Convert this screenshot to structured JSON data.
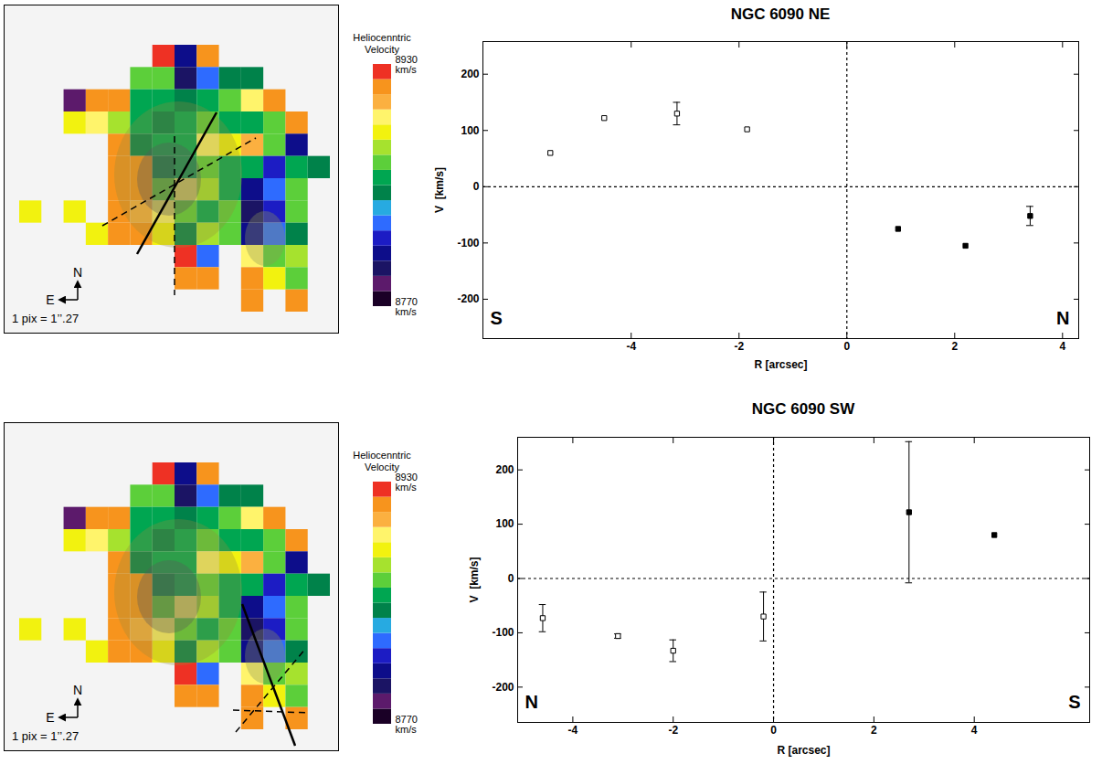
{
  "chart_data": [
    {
      "type": "heatmap",
      "tick_labels": false,
      "cells": [
        [
          0,
          6,
          8925
        ],
        [
          0,
          7,
          8805
        ],
        [
          0,
          8,
          8915
        ],
        [
          1,
          5,
          8865
        ],
        [
          1,
          6,
          8865
        ],
        [
          1,
          7,
          8795
        ],
        [
          1,
          8,
          8825
        ],
        [
          1,
          9,
          8845
        ],
        [
          1,
          10,
          8845
        ],
        [
          2,
          2,
          8785
        ],
        [
          2,
          3,
          8915
        ],
        [
          2,
          4,
          8915
        ],
        [
          2,
          5,
          8855
        ],
        [
          2,
          6,
          8855
        ],
        [
          2,
          7,
          8845
        ],
        [
          2,
          8,
          8855
        ],
        [
          2,
          9,
          8865
        ],
        [
          2,
          10,
          8895
        ],
        [
          2,
          11,
          8915
        ],
        [
          3,
          2,
          8885
        ],
        [
          3,
          3,
          8895
        ],
        [
          3,
          4,
          8875
        ],
        [
          3,
          5,
          8855
        ],
        [
          3,
          6,
          8845
        ],
        [
          3,
          7,
          8855
        ],
        [
          3,
          8,
          8865
        ],
        [
          3,
          9,
          8855
        ],
        [
          3,
          10,
          8855
        ],
        [
          3,
          11,
          8865
        ],
        [
          3,
          12,
          8915
        ],
        [
          4,
          4,
          8915
        ],
        [
          4,
          5,
          8845
        ],
        [
          4,
          6,
          8855
        ],
        [
          4,
          7,
          8855
        ],
        [
          4,
          8,
          8895
        ],
        [
          4,
          9,
          8885
        ],
        [
          4,
          10,
          8905
        ],
        [
          4,
          11,
          8865
        ],
        [
          4,
          12,
          8805
        ],
        [
          5,
          4,
          8915
        ],
        [
          5,
          5,
          8915
        ],
        [
          5,
          6,
          8845
        ],
        [
          5,
          7,
          8855
        ],
        [
          5,
          8,
          8865
        ],
        [
          5,
          9,
          8855
        ],
        [
          5,
          10,
          8855
        ],
        [
          5,
          11,
          8815
        ],
        [
          5,
          12,
          8855
        ],
        [
          5,
          13,
          8845
        ],
        [
          6,
          4,
          8915
        ],
        [
          6,
          5,
          8915
        ],
        [
          6,
          6,
          8865
        ],
        [
          6,
          7,
          8895
        ],
        [
          6,
          8,
          8875
        ],
        [
          6,
          9,
          8855
        ],
        [
          6,
          10,
          8805
        ],
        [
          6,
          11,
          8825
        ],
        [
          6,
          12,
          8865
        ],
        [
          7,
          0,
          8885
        ],
        [
          7,
          2,
          8885
        ],
        [
          7,
          4,
          8915
        ],
        [
          7,
          5,
          8905
        ],
        [
          7,
          6,
          8895
        ],
        [
          7,
          7,
          8865
        ],
        [
          7,
          8,
          8855
        ],
        [
          7,
          9,
          8865
        ],
        [
          7,
          10,
          8795
        ],
        [
          7,
          11,
          8815
        ],
        [
          7,
          12,
          8865
        ],
        [
          8,
          3,
          8885
        ],
        [
          8,
          4,
          8915
        ],
        [
          8,
          5,
          8915
        ],
        [
          8,
          6,
          8885
        ],
        [
          8,
          7,
          8845
        ],
        [
          8,
          8,
          8875
        ],
        [
          8,
          9,
          8865
        ],
        [
          8,
          10,
          8805
        ],
        [
          8,
          11,
          8825
        ],
        [
          8,
          12,
          8845
        ],
        [
          9,
          7,
          8925
        ],
        [
          9,
          8,
          8825
        ],
        [
          9,
          10,
          8895
        ],
        [
          9,
          11,
          8865
        ],
        [
          9,
          12,
          8875
        ],
        [
          10,
          7,
          8915
        ],
        [
          10,
          8,
          8915
        ],
        [
          10,
          10,
          8915
        ],
        [
          10,
          11,
          8885
        ],
        [
          10,
          12,
          8865
        ],
        [
          11,
          10,
          8915
        ],
        [
          11,
          12,
          8915
        ]
      ],
      "colorbar": {
        "title": "Heliocenntric Velocity",
        "range": [
          8770,
          8930
        ],
        "ticks": [
          {
            "value": 8930,
            "label": "8930 km/s"
          },
          {
            "value": 8770,
            "label": "8770 km/s"
          }
        ]
      },
      "compass": {
        "north": "N",
        "east": "E"
      },
      "scale_note": "1 pix = 1’’.27"
    },
    {
      "type": "scatter",
      "title": "NGC 6090 NE",
      "x_label": "R [arcsec]",
      "y_label": "V  [km/s]",
      "xlim": [
        -6.75,
        4.3
      ],
      "xticks": [
        -4,
        -2,
        0,
        2,
        4
      ],
      "ylim": [
        -270,
        258
      ],
      "yticks": [
        -200,
        -100,
        0,
        100,
        200
      ],
      "dashed_lines": {
        "x": [
          0
        ],
        "y": [
          0
        ]
      },
      "corner_labels": {
        "left": "S",
        "right": "N"
      },
      "series": [
        {
          "marker": "open_square",
          "color": "#000000",
          "x": [
            -5.5,
            -4.5,
            -3.15,
            -1.85
          ],
          "values": [
            60,
            122,
            130,
            102
          ],
          "errors": [
            null,
            null,
            20,
            null
          ]
        },
        {
          "marker": "filled_square",
          "color": "#000000",
          "x": [
            0.95,
            2.2,
            3.4
          ],
          "values": [
            -75,
            -105,
            -52
          ],
          "errors": [
            null,
            null,
            17
          ]
        }
      ]
    },
    {
      "type": "heatmap",
      "tick_labels": false,
      "cells": [
        [
          0,
          6,
          8925
        ],
        [
          0,
          7,
          8805
        ],
        [
          0,
          8,
          8915
        ],
        [
          1,
          5,
          8865
        ],
        [
          1,
          6,
          8865
        ],
        [
          1,
          7,
          8795
        ],
        [
          1,
          8,
          8825
        ],
        [
          1,
          9,
          8845
        ],
        [
          1,
          10,
          8845
        ],
        [
          2,
          2,
          8785
        ],
        [
          2,
          3,
          8915
        ],
        [
          2,
          4,
          8915
        ],
        [
          2,
          5,
          8855
        ],
        [
          2,
          6,
          8855
        ],
        [
          2,
          7,
          8845
        ],
        [
          2,
          8,
          8855
        ],
        [
          2,
          9,
          8865
        ],
        [
          2,
          10,
          8895
        ],
        [
          2,
          11,
          8915
        ],
        [
          3,
          2,
          8885
        ],
        [
          3,
          3,
          8895
        ],
        [
          3,
          4,
          8875
        ],
        [
          3,
          5,
          8855
        ],
        [
          3,
          6,
          8845
        ],
        [
          3,
          7,
          8855
        ],
        [
          3,
          8,
          8865
        ],
        [
          3,
          9,
          8855
        ],
        [
          3,
          10,
          8855
        ],
        [
          3,
          11,
          8865
        ],
        [
          3,
          12,
          8915
        ],
        [
          4,
          4,
          8915
        ],
        [
          4,
          5,
          8845
        ],
        [
          4,
          6,
          8855
        ],
        [
          4,
          7,
          8855
        ],
        [
          4,
          8,
          8895
        ],
        [
          4,
          9,
          8885
        ],
        [
          4,
          10,
          8905
        ],
        [
          4,
          11,
          8865
        ],
        [
          4,
          12,
          8805
        ],
        [
          5,
          4,
          8915
        ],
        [
          5,
          5,
          8915
        ],
        [
          5,
          6,
          8845
        ],
        [
          5,
          7,
          8855
        ],
        [
          5,
          8,
          8865
        ],
        [
          5,
          9,
          8855
        ],
        [
          5,
          10,
          8855
        ],
        [
          5,
          11,
          8815
        ],
        [
          5,
          12,
          8855
        ],
        [
          5,
          13,
          8845
        ],
        [
          6,
          4,
          8915
        ],
        [
          6,
          5,
          8915
        ],
        [
          6,
          6,
          8865
        ],
        [
          6,
          7,
          8895
        ],
        [
          6,
          8,
          8875
        ],
        [
          6,
          9,
          8855
        ],
        [
          6,
          10,
          8805
        ],
        [
          6,
          11,
          8825
        ],
        [
          6,
          12,
          8865
        ],
        [
          7,
          0,
          8885
        ],
        [
          7,
          2,
          8885
        ],
        [
          7,
          4,
          8915
        ],
        [
          7,
          5,
          8905
        ],
        [
          7,
          6,
          8895
        ],
        [
          7,
          7,
          8865
        ],
        [
          7,
          8,
          8855
        ],
        [
          7,
          9,
          8865
        ],
        [
          7,
          10,
          8795
        ],
        [
          7,
          11,
          8815
        ],
        [
          7,
          12,
          8865
        ],
        [
          8,
          3,
          8885
        ],
        [
          8,
          4,
          8915
        ],
        [
          8,
          5,
          8915
        ],
        [
          8,
          6,
          8885
        ],
        [
          8,
          7,
          8845
        ],
        [
          8,
          8,
          8875
        ],
        [
          8,
          9,
          8865
        ],
        [
          8,
          10,
          8805
        ],
        [
          8,
          11,
          8825
        ],
        [
          8,
          12,
          8845
        ],
        [
          9,
          7,
          8925
        ],
        [
          9,
          8,
          8825
        ],
        [
          9,
          10,
          8895
        ],
        [
          9,
          11,
          8865
        ],
        [
          9,
          12,
          8875
        ],
        [
          10,
          7,
          8915
        ],
        [
          10,
          8,
          8915
        ],
        [
          10,
          10,
          8915
        ],
        [
          10,
          11,
          8885
        ],
        [
          10,
          12,
          8865
        ],
        [
          11,
          10,
          8915
        ],
        [
          11,
          12,
          8915
        ]
      ],
      "colorbar": {
        "title": "Heliocenntric Velocity",
        "range": [
          8770,
          8930
        ],
        "ticks": [
          {
            "value": 8930,
            "label": "8930 km/s"
          },
          {
            "value": 8770,
            "label": "8770 km/s"
          }
        ]
      },
      "compass": {
        "north": "N",
        "east": "E"
      },
      "scale_note": "1 pix = 1’’.27"
    },
    {
      "type": "scatter",
      "title": "NGC 6090 SW",
      "x_label": "R [arcsec]",
      "y_label": "V  [km/s]",
      "xlim": [
        -5.1,
        6.3
      ],
      "xticks": [
        -4,
        -2,
        0,
        2,
        4
      ],
      "ylim": [
        -265,
        260
      ],
      "yticks": [
        -200,
        -100,
        0,
        100,
        200
      ],
      "dashed_lines": {
        "x": [
          0
        ],
        "y": [
          0
        ]
      },
      "corner_labels": {
        "left": "N",
        "right": "S"
      },
      "series": [
        {
          "marker": "open_square",
          "color": "#000000",
          "x": [
            -4.6,
            -3.1,
            -2.0,
            -0.2
          ],
          "values": [
            -73,
            -106,
            -133,
            -70
          ],
          "errors": [
            25,
            4,
            20,
            45
          ]
        },
        {
          "marker": "filled_square",
          "color": "#000000",
          "x": [
            2.7,
            4.4
          ],
          "values": [
            122,
            80
          ],
          "errors": [
            130,
            null
          ]
        }
      ]
    }
  ]
}
